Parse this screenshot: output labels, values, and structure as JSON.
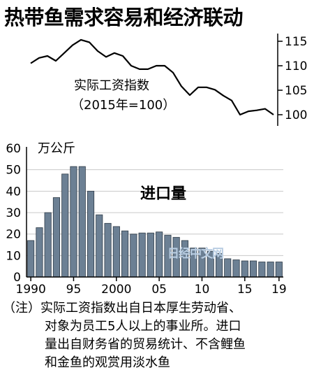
{
  "title": "热带鱼需求容易和经济联动",
  "watermark": "日经中文网",
  "note": {
    "prefix": "（注）",
    "lines": [
      "实际工资指数出自日本厚生劳动省、",
      "对象为员工5人以上的事业所。进口",
      "量出自财务省的贸易统计、不含鲤鱼",
      "和金鱼的观赏用淡水鱼"
    ]
  },
  "chart_data": [
    {
      "type": "line",
      "title": "实际工资指数",
      "subtitle": "（2015年=100）",
      "x": [
        1990,
        1991,
        1992,
        1993,
        1994,
        1995,
        1996,
        1997,
        1998,
        1999,
        2000,
        2001,
        2002,
        2003,
        2004,
        2005,
        2006,
        2007,
        2008,
        2009,
        2010,
        2011,
        2012,
        2013,
        2014,
        2015,
        2016,
        2017,
        2018,
        2019
      ],
      "values": [
        110.5,
        111.6,
        112.0,
        111.0,
        112.6,
        114.2,
        115.3,
        114.8,
        113.0,
        111.8,
        112.6,
        112.0,
        110.0,
        109.3,
        109.3,
        110.0,
        110.0,
        108.6,
        105.8,
        104.0,
        105.6,
        105.6,
        105.1,
        103.9,
        102.9,
        100.0,
        100.7,
        100.9,
        101.2,
        100.0
      ],
      "ylim": [
        99,
        116
      ],
      "y_ticks": [
        100,
        105,
        110,
        115
      ],
      "axis_side": "right",
      "color": "#000000"
    },
    {
      "type": "bar",
      "title": "进口量",
      "ylabel": "万公斤",
      "x": [
        1990,
        1991,
        1992,
        1993,
        1994,
        1995,
        1996,
        1997,
        1998,
        1999,
        2000,
        2001,
        2002,
        2003,
        2004,
        2005,
        2006,
        2007,
        2008,
        2009,
        2010,
        2011,
        2012,
        2013,
        2014,
        2015,
        2016,
        2017,
        2018,
        2019
      ],
      "values": [
        17,
        23,
        30,
        37,
        48,
        51.5,
        51.5,
        40,
        29,
        25,
        23.5,
        21.5,
        20,
        20.5,
        20.5,
        21,
        19.5,
        18.5,
        17,
        13.5,
        13.5,
        12,
        11,
        8.5,
        8,
        7.5,
        7.5,
        7,
        7,
        7
      ],
      "ylim": [
        0,
        60
      ],
      "y_ticks": [
        0,
        10,
        20,
        30,
        40,
        50,
        60
      ],
      "x_tick_labels": [
        {
          "year": 1990,
          "label": "1990"
        },
        {
          "year": 1995,
          "label": "95"
        },
        {
          "year": 2000,
          "label": "2000"
        },
        {
          "year": 2005,
          "label": "05"
        },
        {
          "year": 2010,
          "label": "10"
        },
        {
          "year": 2015,
          "label": "15"
        },
        {
          "year": 2019,
          "label": "19"
        }
      ],
      "grid": "horizontal",
      "bar_color": "#6c8094"
    }
  ]
}
